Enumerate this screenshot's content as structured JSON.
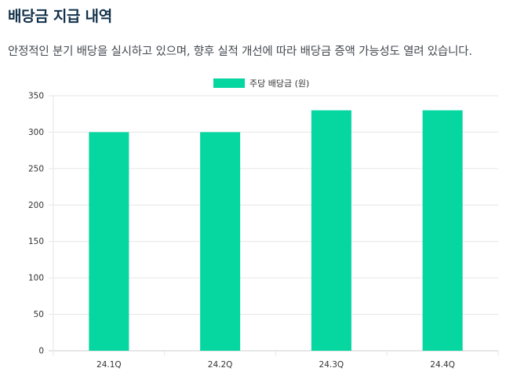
{
  "section": {
    "title": "배당금 지급 내역",
    "description": "안정적인 분기 배당을 실시하고 있으며, 향후 실적 개선에 따라 배당금 증액 가능성도 열려 있습니다."
  },
  "colors": {
    "bar": "#06d6a0",
    "grid": "#e6e6e6",
    "axis_text": "#333333"
  },
  "chart_data": {
    "type": "bar",
    "categories": [
      "24.1Q",
      "24.2Q",
      "24.3Q",
      "24.4Q"
    ],
    "series": [
      {
        "name": "주당 배당금 (원)",
        "values": [
          300,
          300,
          330,
          330
        ]
      }
    ],
    "ylim": [
      0,
      350
    ],
    "yticks": [
      0,
      50,
      100,
      150,
      200,
      250,
      300,
      350
    ],
    "grid": true,
    "legend": "top-center"
  }
}
